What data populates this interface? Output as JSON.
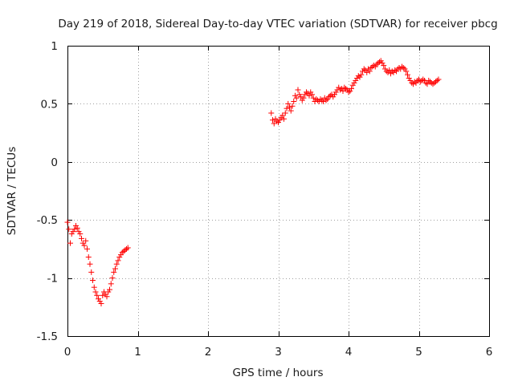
{
  "chart_data": {
    "type": "scatter",
    "title": "Day 219 of 2018, Sidereal Day-to-day VTEC variation (SDTVAR) for receiver pbcg",
    "xlabel": "GPS time / hours",
    "ylabel": "SDTVAR / TECUs",
    "xlim": [
      0,
      6
    ],
    "ylim": [
      -1.5,
      1
    ],
    "xticks": [
      0,
      1,
      2,
      3,
      4,
      5,
      6
    ],
    "xtick_labels": [
      "0",
      "1",
      "2",
      "3",
      "4",
      "5",
      "6"
    ],
    "yticks": [
      -1.5,
      -1,
      -0.5,
      0,
      0.5,
      1
    ],
    "ytick_labels": [
      "-1.5",
      "-1",
      "-0.5",
      "0",
      "0.5",
      "1"
    ],
    "grid": true,
    "marker": "+",
    "color": "#ff0000",
    "series": [
      {
        "name": "SDTVAR",
        "segments": [
          {
            "x": [
              0.0,
              0.02,
              0.04,
              0.06,
              0.08,
              0.1,
              0.12,
              0.14,
              0.16,
              0.18,
              0.2,
              0.22,
              0.24,
              0.26,
              0.28,
              0.3,
              0.32,
              0.34,
              0.36,
              0.38,
              0.4,
              0.42,
              0.44,
              0.46,
              0.48,
              0.5,
              0.52,
              0.54,
              0.56,
              0.58,
              0.6,
              0.62,
              0.64,
              0.66,
              0.68,
              0.7,
              0.72,
              0.74,
              0.76,
              0.78,
              0.8,
              0.82,
              0.84,
              0.86
            ],
            "y": [
              -0.52,
              -0.58,
              -0.7,
              -0.62,
              -0.6,
              -0.58,
              -0.55,
              -0.57,
              -0.6,
              -0.62,
              -0.66,
              -0.7,
              -0.72,
              -0.68,
              -0.75,
              -0.82,
              -0.88,
              -0.95,
              -1.02,
              -1.08,
              -1.12,
              -1.15,
              -1.18,
              -1.2,
              -1.22,
              -1.15,
              -1.12,
              -1.14,
              -1.16,
              -1.12,
              -1.1,
              -1.05,
              -1.0,
              -0.95,
              -0.92,
              -0.88,
              -0.85,
              -0.82,
              -0.8,
              -0.78,
              -0.77,
              -0.76,
              -0.75,
              -0.74
            ]
          },
          {
            "x": [
              2.9,
              2.92,
              2.94,
              2.96,
              2.98,
              3.0,
              3.02,
              3.04,
              3.06,
              3.08,
              3.1,
              3.12,
              3.14,
              3.16,
              3.18,
              3.2,
              3.22,
              3.24,
              3.26,
              3.28,
              3.3,
              3.32,
              3.34,
              3.36,
              3.38,
              3.4,
              3.42,
              3.44,
              3.46,
              3.48,
              3.5,
              3.52,
              3.54,
              3.56,
              3.58,
              3.6,
              3.62,
              3.64,
              3.66,
              3.68,
              3.7,
              3.72,
              3.74,
              3.76,
              3.78,
              3.8,
              3.82,
              3.84,
              3.86,
              3.88,
              3.9,
              3.92,
              3.94,
              3.96,
              3.98,
              4.0,
              4.02,
              4.04,
              4.06,
              4.08,
              4.1,
              4.12,
              4.14,
              4.16,
              4.18,
              4.2,
              4.22,
              4.24,
              4.26,
              4.28,
              4.3,
              4.32,
              4.34,
              4.36,
              4.38,
              4.4,
              4.42,
              4.44,
              4.46,
              4.48,
              4.5,
              4.52,
              4.54,
              4.56,
              4.58,
              4.6,
              4.62,
              4.64,
              4.66,
              4.68,
              4.7,
              4.72,
              4.74,
              4.76,
              4.78,
              4.8,
              4.82,
              4.84,
              4.86,
              4.88,
              4.9,
              4.92,
              4.94,
              4.96,
              4.98,
              5.0,
              5.02,
              5.04,
              5.06,
              5.08,
              5.1,
              5.12,
              5.14,
              5.16,
              5.18,
              5.2,
              5.22,
              5.24,
              5.26,
              5.28
            ],
            "y": [
              0.42,
              0.36,
              0.33,
              0.37,
              0.35,
              0.34,
              0.36,
              0.38,
              0.4,
              0.37,
              0.42,
              0.46,
              0.5,
              0.47,
              0.44,
              0.48,
              0.52,
              0.57,
              0.55,
              0.62,
              0.58,
              0.56,
              0.53,
              0.55,
              0.58,
              0.6,
              0.59,
              0.57,
              0.6,
              0.58,
              0.55,
              0.52,
              0.54,
              0.53,
              0.52,
              0.54,
              0.53,
              0.52,
              0.55,
              0.53,
              0.54,
              0.56,
              0.57,
              0.58,
              0.56,
              0.58,
              0.6,
              0.62,
              0.64,
              0.62,
              0.63,
              0.61,
              0.64,
              0.63,
              0.62,
              0.6,
              0.61,
              0.63,
              0.66,
              0.68,
              0.7,
              0.72,
              0.74,
              0.73,
              0.75,
              0.78,
              0.8,
              0.79,
              0.77,
              0.8,
              0.78,
              0.81,
              0.82,
              0.83,
              0.82,
              0.84,
              0.85,
              0.86,
              0.87,
              0.85,
              0.83,
              0.8,
              0.78,
              0.77,
              0.79,
              0.76,
              0.78,
              0.77,
              0.79,
              0.78,
              0.8,
              0.81,
              0.8,
              0.82,
              0.81,
              0.8,
              0.78,
              0.75,
              0.72,
              0.7,
              0.68,
              0.67,
              0.69,
              0.68,
              0.7,
              0.71,
              0.69,
              0.7,
              0.71,
              0.7,
              0.68,
              0.67,
              0.7,
              0.69,
              0.68,
              0.67,
              0.68,
              0.69,
              0.7,
              0.71
            ]
          }
        ]
      }
    ]
  }
}
